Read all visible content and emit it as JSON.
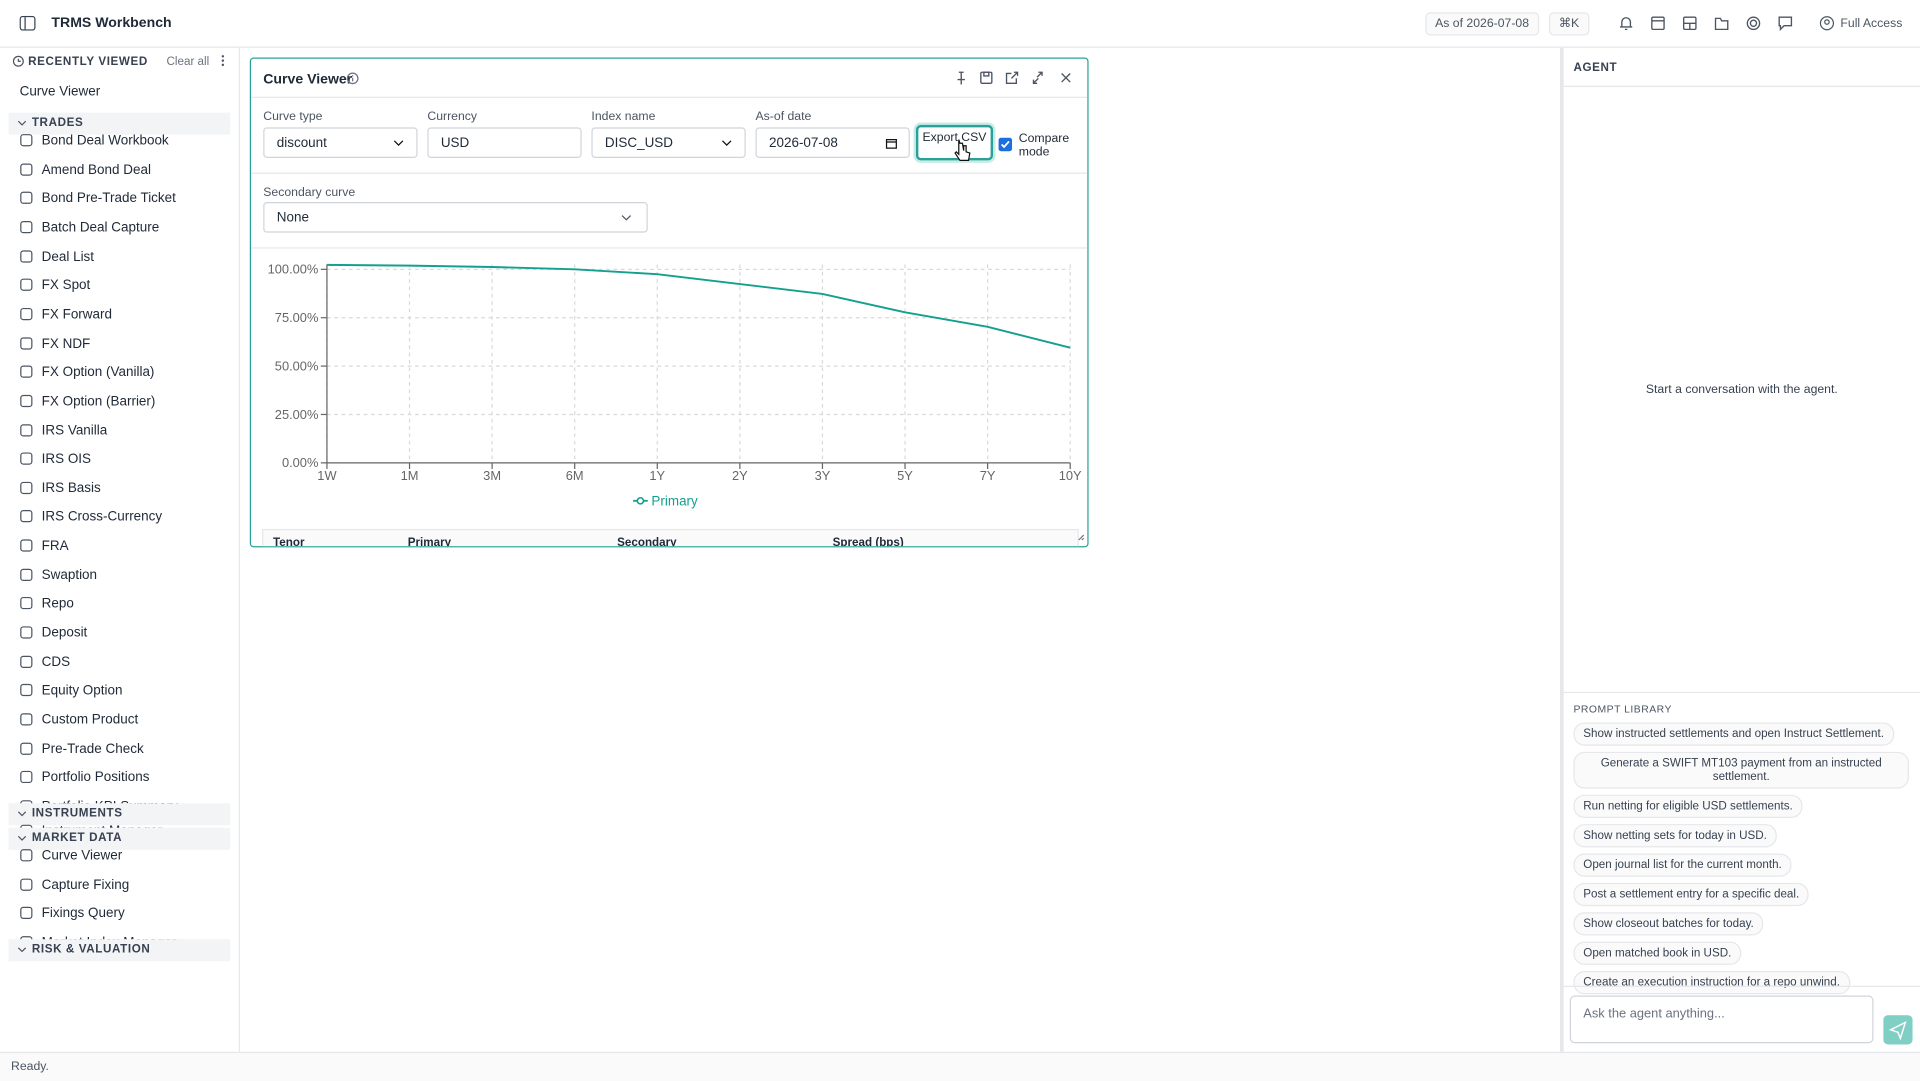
{
  "header": {
    "title": "TRMS Workbench",
    "as_of": "As of 2026-07-08",
    "shortcut": "⌘K",
    "access": "Full Access"
  },
  "sidebar": {
    "recent_title": "RECENTLY VIEWED",
    "clear": "Clear all",
    "recent": [
      "Curve Viewer"
    ],
    "sections": [
      {
        "title": "TRADES",
        "items": [
          "Bond Deal Workbook",
          "Amend Bond Deal",
          "Bond Pre-Trade Ticket",
          "Batch Deal Capture",
          "Deal List",
          "FX Spot",
          "FX Forward",
          "FX NDF",
          "FX Option (Vanilla)",
          "FX Option (Barrier)",
          "IRS Vanilla",
          "IRS OIS",
          "IRS Basis",
          "IRS Cross-Currency",
          "FRA",
          "Swaption",
          "Repo",
          "Deposit",
          "CDS",
          "Equity Option",
          "Custom Product",
          "Pre-Trade Check",
          "Portfolio Positions",
          "Portfolio KPI Summary"
        ]
      },
      {
        "title": "INSTRUMENTS",
        "items": [
          "Instrument Manager"
        ]
      },
      {
        "title": "MARKET DATA",
        "items": [
          "Curve Viewer",
          "Capture Fixing",
          "Fixings Query",
          "Market Index Manager"
        ]
      },
      {
        "title": "RISK & VALUATION",
        "items": []
      }
    ]
  },
  "viewer": {
    "title": "Curve Viewer",
    "fields": [
      {
        "label": "Curve type",
        "value": "discount"
      },
      {
        "label": "Currency",
        "value": "USD"
      },
      {
        "label": "Index name",
        "value": "DISC_USD"
      },
      {
        "label": "As-of date",
        "value": "2026-07-08"
      }
    ],
    "export": "Export CSV",
    "compare": "Compare mode",
    "secondary_label": "Secondary curve",
    "secondary_value": "None",
    "table_headers": [
      "Tenor",
      "Primary",
      "Secondary",
      "Spread (bps)"
    ]
  },
  "chart_data": {
    "type": "line",
    "categories": [
      "1W",
      "1M",
      "3M",
      "6M",
      "1Y",
      "2Y",
      "3Y",
      "5Y",
      "7Y",
      "10Y"
    ],
    "series": [
      {
        "name": "Primary",
        "color": "#14a08f",
        "values": [
          102.3,
          101.9,
          101.2,
          100,
          97.5,
          92.4,
          87.3,
          77.8,
          70.3,
          59.5
        ]
      }
    ],
    "ylim": [
      0,
      102.5
    ],
    "yticks": [
      {
        "value": 0,
        "label": "0.00%"
      },
      {
        "value": 25,
        "label": "25.00%"
      },
      {
        "value": 50,
        "label": "50.00%"
      },
      {
        "value": 75,
        "label": "75.00%"
      },
      {
        "value": 100,
        "label": "100.00%"
      }
    ],
    "grid": true
  },
  "agent": {
    "title": "AGENT",
    "empty": "Start a conversation with the agent.",
    "library_title": "PROMPT LIBRARY",
    "prompts": [
      "Show instructed settlements and open Instruct Settlement.",
      "Generate a SWIFT MT103 payment from an instructed settlement.",
      "Run netting for eligible USD settlements.",
      "Show netting sets for today in USD.",
      "Open journal list for the current month.",
      "Post a settlement entry for a specific deal.",
      "Show closeout batches for today.",
      "Open matched book in USD.",
      "Create an execution instruction for a repo unwind."
    ],
    "placeholder": "Ask the agent anything..."
  },
  "status": "Ready."
}
